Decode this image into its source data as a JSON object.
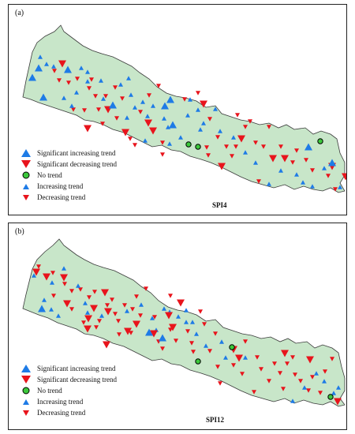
{
  "colors": {
    "land": "#c8e6c9",
    "border": "#3a3a3a",
    "increasing": "#1e7be6",
    "decreasing": "#e8141c",
    "no_trend_fill": "#3cc83c",
    "no_trend_stroke": "#000000"
  },
  "legend": {
    "sig_inc": "Significant increasing trend",
    "sig_dec": "Significant decreasing trend",
    "no_trend": "No trend",
    "inc": "Increasing trend",
    "dec": "Decreasing trend"
  },
  "panels": [
    {
      "label": "(a)",
      "index": "SPI4",
      "stations": {
        "sig_inc": [
          [
            75,
            82
          ],
          [
            30,
            92
          ],
          [
            44,
            117
          ],
          [
            205,
            120
          ],
          [
            132,
            127
          ],
          [
            198,
            128
          ],
          [
            208,
            152
          ],
          [
            380,
            180
          ],
          [
            410,
            200
          ],
          [
            38,
            80
          ]
        ],
        "sig_dec": [
          [
            68,
            75
          ],
          [
            100,
            157
          ],
          [
            126,
            133
          ],
          [
            148,
            162
          ],
          [
            177,
            150
          ],
          [
            183,
            160
          ],
          [
            247,
            126
          ],
          [
            295,
            170
          ],
          [
            335,
            195
          ],
          [
            350,
            195
          ],
          [
            410,
            205
          ],
          [
            427,
            218
          ],
          [
            270,
            205
          ]
        ],
        "no_trend": [
          [
            228,
            177
          ],
          [
            240,
            180
          ],
          [
            395,
            173
          ]
        ],
        "inc": [
          [
            40,
            66
          ],
          [
            48,
            75
          ],
          [
            57,
            78
          ],
          [
            92,
            80
          ],
          [
            100,
            85
          ],
          [
            100,
            97
          ],
          [
            117,
            96
          ],
          [
            120,
            119
          ],
          [
            142,
            101
          ],
          [
            152,
            93
          ],
          [
            155,
            114
          ],
          [
            160,
            130
          ],
          [
            170,
            123
          ],
          [
            183,
            128
          ],
          [
            176,
            141
          ],
          [
            197,
            144
          ],
          [
            202,
            155
          ],
          [
            204,
            176
          ],
          [
            218,
            168
          ],
          [
            227,
            140
          ],
          [
            230,
            120
          ],
          [
            240,
            133
          ],
          [
            247,
            150
          ],
          [
            262,
            132
          ],
          [
            268,
            160
          ],
          [
            285,
            168
          ],
          [
            300,
            187
          ],
          [
            313,
            200
          ],
          [
            330,
            227
          ],
          [
            345,
            210
          ],
          [
            365,
            215
          ],
          [
            373,
            225
          ],
          [
            385,
            230
          ],
          [
            400,
            207
          ],
          [
            420,
            231
          ],
          [
            70,
            118
          ],
          [
            80,
            128
          ],
          [
            86,
            111
          ],
          [
            150,
            143
          ],
          [
            173,
            172
          ],
          [
            243,
            158
          ]
        ],
        "dec": [
          [
            58,
            84
          ],
          [
            64,
            96
          ],
          [
            87,
            94
          ],
          [
            102,
            106
          ],
          [
            105,
            95
          ],
          [
            110,
            116
          ],
          [
            114,
            133
          ],
          [
            119,
            151
          ],
          [
            135,
            105
          ],
          [
            137,
            144
          ],
          [
            154,
            170
          ],
          [
            160,
            178
          ],
          [
            167,
            136
          ],
          [
            190,
            103
          ],
          [
            195,
            190
          ],
          [
            223,
            120
          ],
          [
            255,
            145
          ],
          [
            265,
            168
          ],
          [
            276,
            180
          ],
          [
            283,
            192
          ],
          [
            290,
            140
          ],
          [
            300,
            155
          ],
          [
            306,
            148
          ],
          [
            313,
            175
          ],
          [
            323,
            180
          ],
          [
            330,
            155
          ],
          [
            345,
            180
          ],
          [
            360,
            200
          ],
          [
            365,
            185
          ],
          [
            377,
            197
          ],
          [
            385,
            210
          ],
          [
            405,
            217
          ],
          [
            414,
            234
          ],
          [
            317,
            224
          ],
          [
            288,
            180
          ],
          [
            253,
            191
          ],
          [
            251,
            181
          ],
          [
            240,
            112
          ],
          [
            76,
            99
          ],
          [
            82,
            133
          ],
          [
            96,
            134
          ],
          [
            123,
            116
          ],
          [
            144,
            119
          ],
          [
            178,
            115
          ],
          [
            195,
            175
          ]
        ]
      }
    },
    {
      "label": "(b)",
      "index": "SPI12",
      "stations": {
        "sig_inc": [
          [
            42,
            108
          ],
          [
            178,
            138
          ],
          [
            195,
            145
          ]
        ],
        "sig_dec": [
          [
            48,
            68
          ],
          [
            122,
            88
          ],
          [
            126,
            112
          ],
          [
            74,
            102
          ],
          [
            101,
            121
          ],
          [
            100,
            134
          ],
          [
            108,
            108
          ],
          [
            162,
            128
          ],
          [
            184,
            140
          ],
          [
            203,
            117
          ],
          [
            208,
            132
          ],
          [
            218,
            101
          ],
          [
            285,
            160
          ],
          [
            292,
            171
          ],
          [
            382,
            173
          ],
          [
            350,
            165
          ],
          [
            417,
            226
          ],
          [
            35,
            62
          ],
          [
            70,
            69
          ],
          [
            124,
            154
          ],
          [
            151,
            137
          ]
        ],
        "no_trend": [
          [
            240,
            175
          ],
          [
            283,
            157
          ],
          [
            408,
            220
          ]
        ],
        "inc": [
          [
            45,
            97
          ],
          [
            54,
            109
          ],
          [
            63,
            117
          ],
          [
            88,
            79
          ],
          [
            97,
            101
          ],
          [
            100,
            113
          ],
          [
            118,
            117
          ],
          [
            150,
            111
          ],
          [
            168,
            103
          ],
          [
            182,
            120
          ],
          [
            187,
            135
          ],
          [
            197,
            108
          ],
          [
            204,
            112
          ],
          [
            215,
            118
          ],
          [
            225,
            110
          ],
          [
            225,
            125
          ],
          [
            233,
            125
          ],
          [
            238,
            140
          ],
          [
            250,
            155
          ],
          [
            270,
            150
          ],
          [
            275,
            170
          ],
          [
            300,
            170
          ],
          [
            390,
            190
          ],
          [
            412,
            215
          ],
          [
            418,
            208
          ],
          [
            375,
            208
          ],
          [
            400,
            200
          ],
          [
            360,
            225
          ],
          [
            32,
            66
          ],
          [
            55,
            75
          ],
          [
            70,
            57
          ]
        ],
        "dec": [
          [
            38,
            55
          ],
          [
            56,
            63
          ],
          [
            57,
            92
          ],
          [
            71,
            77
          ],
          [
            80,
            86
          ],
          [
            80,
            109
          ],
          [
            91,
            84
          ],
          [
            95,
            126
          ],
          [
            102,
            94
          ],
          [
            109,
            87
          ],
          [
            111,
            132
          ],
          [
            115,
            124
          ],
          [
            125,
            104
          ],
          [
            131,
            97
          ],
          [
            135,
            115
          ],
          [
            139,
            124
          ],
          [
            140,
            141
          ],
          [
            147,
            104
          ],
          [
            155,
            139
          ],
          [
            157,
            109
          ],
          [
            162,
            93
          ],
          [
            167,
            117
          ],
          [
            174,
            83
          ],
          [
            185,
            119
          ],
          [
            190,
            150
          ],
          [
            195,
            159
          ],
          [
            205,
            92
          ],
          [
            205,
            135
          ],
          [
            212,
            149
          ],
          [
            227,
            137
          ],
          [
            232,
            152
          ],
          [
            243,
            112
          ],
          [
            248,
            128
          ],
          [
            255,
            162
          ],
          [
            262,
            140
          ],
          [
            265,
            182
          ],
          [
            285,
            180
          ],
          [
            296,
            191
          ],
          [
            300,
            150
          ],
          [
            315,
            170
          ],
          [
            320,
            185
          ],
          [
            330,
            200
          ],
          [
            337,
            178
          ],
          [
            344,
            190
          ],
          [
            348,
            210
          ],
          [
            353,
            178
          ],
          [
            360,
            170
          ],
          [
            363,
            192
          ],
          [
            370,
            200
          ],
          [
            380,
            212
          ],
          [
            385,
            195
          ],
          [
            395,
            215
          ],
          [
            401,
            188
          ],
          [
            410,
            172
          ],
          [
            311,
            214
          ],
          [
            268,
            203
          ],
          [
            234,
            163
          ]
        ]
      }
    }
  ]
}
